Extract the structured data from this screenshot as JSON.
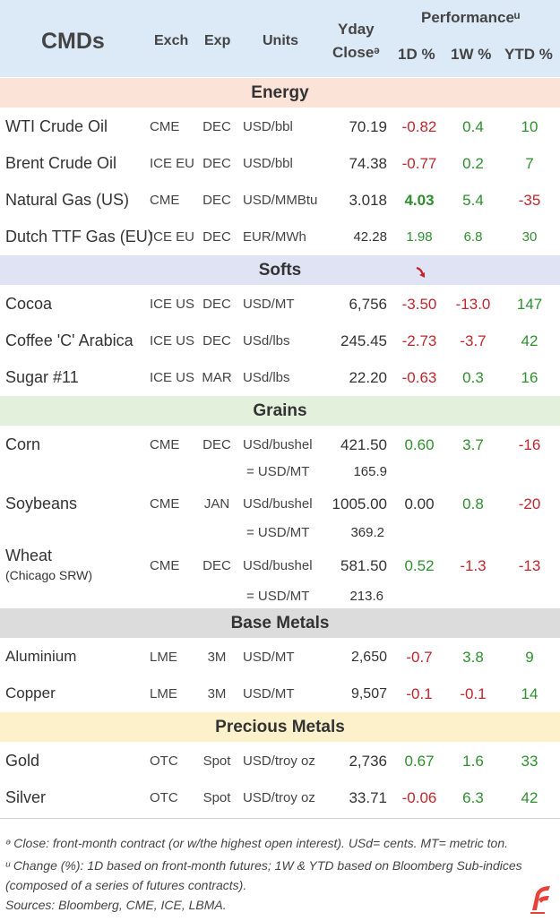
{
  "header": {
    "title": "CMDs",
    "exch": "Exch",
    "exp": "Exp",
    "units": "Units",
    "close_line1": "Yday",
    "close_line2": "Closeᵊ",
    "performance": "Performanceᵘ",
    "d1": "1D %",
    "w1": "1W %",
    "ytd": "YTD %"
  },
  "sections": {
    "energy": "Energy",
    "softs": "Softs",
    "grains": "Grains",
    "base": "Base Metals",
    "precious": "Precious Metals"
  },
  "colors": {
    "header_bg": "#dce9f7",
    "energy_bg": "#fbe3d8",
    "softs_bg": "#dfe3f3",
    "grains_bg": "#e2f0dc",
    "base_bg": "#dcdcdc",
    "precious_bg": "#fdf1cc",
    "positive": "#2f8f2f",
    "negative": "#c0262c"
  },
  "rows": {
    "wti": {
      "name": "WTI Crude Oil",
      "exch": "CME",
      "exp": "DEC",
      "units": "USD/bbl",
      "close": "70.19",
      "d1": "-0.82",
      "w1": "0.4",
      "ytd": "10"
    },
    "brent": {
      "name": "Brent Crude Oil",
      "exch": "ICE EU",
      "exp": "DEC",
      "units": "USD/bbl",
      "close": "74.38",
      "d1": "-0.77",
      "w1": "0.2",
      "ytd": "7"
    },
    "natgas": {
      "name": "Natural Gas (US)",
      "exch": "CME",
      "exp": "DEC",
      "units": "USD/MMBtu",
      "close": "3.018",
      "d1": "4.03",
      "w1": "5.4",
      "ytd": "-35"
    },
    "ttf": {
      "name": "Dutch TTF Gas (EU)",
      "exch": "ICE EU",
      "exp": "DEC",
      "units": "EUR/MWh",
      "close": "42.28",
      "d1": "1.98",
      "w1": "6.8",
      "ytd": "30"
    },
    "cocoa": {
      "name": "Cocoa",
      "exch": "ICE US",
      "exp": "DEC",
      "units": "USD/MT",
      "close": "6,756",
      "d1": "-3.50",
      "w1": "-13.0",
      "ytd": "147"
    },
    "coffee": {
      "name": "Coffee 'C' Arabica",
      "exch": "ICE US",
      "exp": "DEC",
      "units": "USd/lbs",
      "close": "245.45",
      "d1": "-2.73",
      "w1": "-3.7",
      "ytd": "42"
    },
    "sugar": {
      "name": "Sugar #11",
      "exch": "ICE US",
      "exp": "MAR",
      "units": "USd/lbs",
      "close": "22.20",
      "d1": "-0.63",
      "w1": "0.3",
      "ytd": "16"
    },
    "corn": {
      "name": "Corn",
      "exch": "CME",
      "exp": "DEC",
      "units": "USd/bushel",
      "close": "421.50",
      "d1": "0.60",
      "w1": "3.7",
      "ytd": "-16",
      "conv_units": "= USD/MT",
      "conv_close": "165.9"
    },
    "soy": {
      "name": "Soybeans",
      "exch": "CME",
      "exp": "JAN",
      "units": "USd/bushel",
      "close": "1005.00",
      "d1": "0.00",
      "w1": "0.8",
      "ytd": "-20",
      "conv_units": "= USD/MT",
      "conv_close": "369.2"
    },
    "wheat": {
      "name": "Wheat",
      "sub": "(Chicago SRW)",
      "exch": "CME",
      "exp": "DEC",
      "units": "USd/bushel",
      "close": "581.50",
      "d1": "0.52",
      "w1": "-1.3",
      "ytd": "-13",
      "conv_units": "= USD/MT",
      "conv_close": "213.6"
    },
    "alu": {
      "name": "Aluminium",
      "exch": "LME",
      "exp": "3M",
      "units": "USD/MT",
      "close": "2,650",
      "d1": "-0.7",
      "w1": "3.8",
      "ytd": "9"
    },
    "copper": {
      "name": "Copper",
      "exch": "LME",
      "exp": "3M",
      "units": "USD/MT",
      "close": "9,507",
      "d1": "-0.1",
      "w1": "-0.1",
      "ytd": "14"
    },
    "gold": {
      "name": "Gold",
      "exch": "OTC",
      "exp": "Spot",
      "units": "USD/troy oz",
      "close": "2,736",
      "d1": "0.67",
      "w1": "1.6",
      "ytd": "33"
    },
    "silver": {
      "name": "Silver",
      "exch": "OTC",
      "exp": "Spot",
      "units": "USD/troy oz",
      "close": "33.71",
      "d1": "-0.06",
      "w1": "6.3",
      "ytd": "42"
    }
  },
  "notes": {
    "line1": "ᵊ Close: front-month contract (or w/the highest open interest). USd= cents. MT= metric ton.",
    "line2": "ᵘ Change (%): 1D based on front-month futures; 1W & YTD based on Bloomberg Sub-indices",
    "line3": "(composed of a series of futures contracts).",
    "line4": "Sources: Bloomberg, CME, ICE, LBMA."
  },
  "icons": {
    "arrow": "red-down-arrow-icon",
    "logo": "brand-logo-icon"
  }
}
